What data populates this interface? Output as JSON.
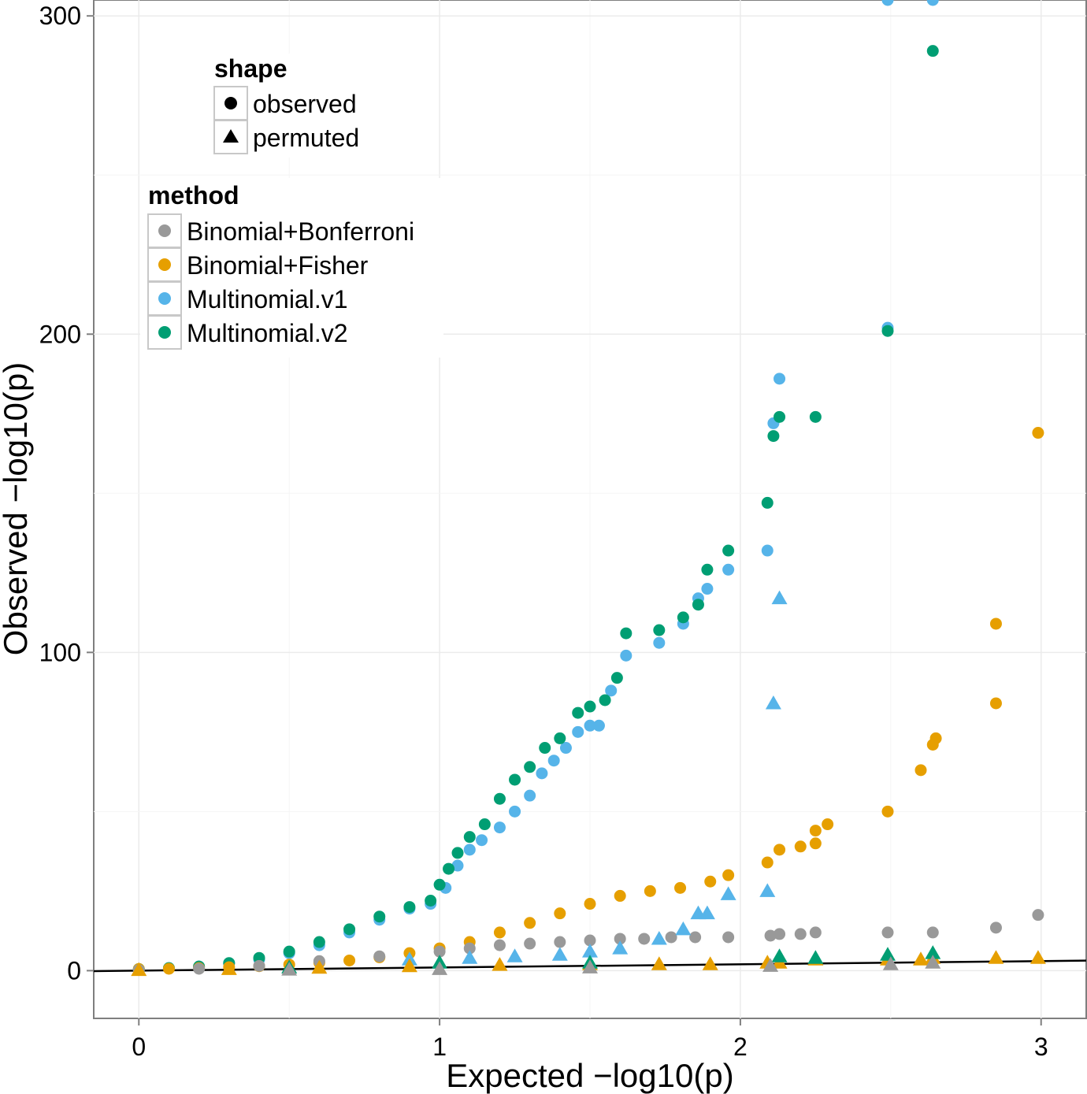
{
  "chart_data": {
    "type": "scatter",
    "title": "",
    "xlabel": "Expected −log10(p)",
    "ylabel": "Observed −log10(p)",
    "xlim": [
      -0.15,
      3.15
    ],
    "ylim": [
      -15,
      305
    ],
    "x_ticks": [
      0,
      1,
      2,
      3
    ],
    "y_ticks": [
      0,
      100,
      200,
      300
    ],
    "x_tick_labels": [
      "0",
      "1",
      "2",
      "3"
    ],
    "y_tick_labels": [
      "0",
      "100",
      "200",
      "300"
    ],
    "grid": true,
    "reference_line": {
      "slope": 1,
      "intercept": 0
    },
    "legends": {
      "shape": {
        "title": "shape",
        "items": [
          {
            "label": "observed",
            "shape": "circle"
          },
          {
            "label": "permuted",
            "shape": "triangle"
          }
        ]
      },
      "method": {
        "title": "method",
        "items": [
          {
            "label": "Binomial+Bonferroni",
            "color": "#999999"
          },
          {
            "label": "Binomial+Fisher",
            "color": "#E69F00"
          },
          {
            "label": "Multinomial.v1",
            "color": "#56B4E9"
          },
          {
            "label": "Multinomial.v2",
            "color": "#009E73"
          }
        ]
      }
    },
    "series": [
      {
        "name": "Multinomial.v1",
        "shape": "circle",
        "color": "#56B4E9",
        "points": [
          [
            0,
            0.5
          ],
          [
            0.1,
            0.8
          ],
          [
            0.2,
            1.3
          ],
          [
            0.3,
            2.3
          ],
          [
            0.4,
            3.5
          ],
          [
            0.5,
            5.5
          ],
          [
            0.6,
            8
          ],
          [
            0.7,
            12
          ],
          [
            0.8,
            16
          ],
          [
            0.9,
            19.5
          ],
          [
            0.97,
            21
          ],
          [
            1.02,
            26
          ],
          [
            1.06,
            33
          ],
          [
            1.1,
            38
          ],
          [
            1.14,
            41
          ],
          [
            1.2,
            45
          ],
          [
            1.25,
            50
          ],
          [
            1.3,
            55
          ],
          [
            1.34,
            62
          ],
          [
            1.38,
            66
          ],
          [
            1.42,
            70
          ],
          [
            1.46,
            75
          ],
          [
            1.5,
            77
          ],
          [
            1.53,
            77
          ],
          [
            1.57,
            88
          ],
          [
            1.62,
            99
          ],
          [
            1.73,
            103
          ],
          [
            1.81,
            109
          ],
          [
            1.86,
            117
          ],
          [
            1.89,
            120
          ],
          [
            1.96,
            126
          ],
          [
            2.09,
            132
          ],
          [
            2.11,
            172
          ],
          [
            2.13,
            186
          ],
          [
            2.49,
            202
          ],
          [
            2.49,
            305
          ],
          [
            2.64,
            305
          ]
        ]
      },
      {
        "name": "Multinomial.v2",
        "shape": "circle",
        "color": "#009E73",
        "points": [
          [
            0,
            0.5
          ],
          [
            0.1,
            0.8
          ],
          [
            0.2,
            1.3
          ],
          [
            0.3,
            2.4
          ],
          [
            0.4,
            4
          ],
          [
            0.5,
            6
          ],
          [
            0.6,
            9
          ],
          [
            0.7,
            13
          ],
          [
            0.8,
            17
          ],
          [
            0.9,
            20
          ],
          [
            0.97,
            22
          ],
          [
            1.0,
            27
          ],
          [
            1.03,
            32
          ],
          [
            1.06,
            37
          ],
          [
            1.1,
            42
          ],
          [
            1.15,
            46
          ],
          [
            1.2,
            54
          ],
          [
            1.25,
            60
          ],
          [
            1.3,
            64
          ],
          [
            1.35,
            70
          ],
          [
            1.4,
            73
          ],
          [
            1.46,
            81
          ],
          [
            1.5,
            83
          ],
          [
            1.55,
            85
          ],
          [
            1.59,
            92
          ],
          [
            1.62,
            106
          ],
          [
            1.73,
            107
          ],
          [
            1.81,
            111
          ],
          [
            1.86,
            115
          ],
          [
            1.89,
            126
          ],
          [
            1.96,
            132
          ],
          [
            2.09,
            147
          ],
          [
            2.11,
            168
          ],
          [
            2.13,
            174
          ],
          [
            2.25,
            174
          ],
          [
            2.49,
            201
          ],
          [
            2.64,
            289
          ]
        ]
      },
      {
        "name": "Binomial+Fisher",
        "shape": "circle",
        "color": "#E69F00",
        "points": [
          [
            0,
            0.5
          ],
          [
            0.1,
            0.6
          ],
          [
            0.2,
            0.8
          ],
          [
            0.3,
            1.1
          ],
          [
            0.4,
            1.4
          ],
          [
            0.5,
            1.9
          ],
          [
            0.6,
            2.5
          ],
          [
            0.7,
            3.2
          ],
          [
            0.8,
            4.2
          ],
          [
            0.9,
            5.5
          ],
          [
            1.0,
            7
          ],
          [
            1.1,
            9
          ],
          [
            1.2,
            12
          ],
          [
            1.3,
            15
          ],
          [
            1.4,
            18
          ],
          [
            1.5,
            21
          ],
          [
            1.6,
            23.5
          ],
          [
            1.7,
            25
          ],
          [
            1.8,
            26
          ],
          [
            1.9,
            28
          ],
          [
            1.96,
            30
          ],
          [
            2.09,
            34
          ],
          [
            2.13,
            38
          ],
          [
            2.2,
            39
          ],
          [
            2.25,
            40
          ],
          [
            2.25,
            44
          ],
          [
            2.29,
            46
          ],
          [
            2.49,
            50
          ],
          [
            2.6,
            63
          ],
          [
            2.64,
            71
          ],
          [
            2.65,
            73
          ],
          [
            2.85,
            84
          ],
          [
            2.85,
            109
          ],
          [
            2.99,
            169
          ]
        ]
      },
      {
        "name": "Binomial+Bonferroni",
        "shape": "circle",
        "color": "#999999",
        "points": [
          [
            0,
            0.2
          ],
          [
            0.2,
            0.6
          ],
          [
            0.4,
            1.5
          ],
          [
            0.6,
            3
          ],
          [
            0.8,
            4.5
          ],
          [
            1.0,
            6
          ],
          [
            1.1,
            7
          ],
          [
            1.2,
            8
          ],
          [
            1.3,
            8.5
          ],
          [
            1.4,
            9
          ],
          [
            1.5,
            9.5
          ],
          [
            1.6,
            10
          ],
          [
            1.68,
            10
          ],
          [
            1.77,
            10.5
          ],
          [
            1.85,
            10.5
          ],
          [
            1.96,
            10.5
          ],
          [
            2.1,
            11
          ],
          [
            2.13,
            11.5
          ],
          [
            2.2,
            11.5
          ],
          [
            2.25,
            12
          ],
          [
            2.49,
            12
          ],
          [
            2.64,
            12
          ],
          [
            2.85,
            13.5
          ],
          [
            2.99,
            17.5
          ]
        ]
      },
      {
        "name": "Multinomial.v1",
        "shape": "triangle",
        "color": "#56B4E9",
        "points": [
          [
            0.9,
            3.5
          ],
          [
            1.1,
            4
          ],
          [
            1.25,
            4.5
          ],
          [
            1.4,
            5
          ],
          [
            1.5,
            6
          ],
          [
            1.6,
            7
          ],
          [
            1.73,
            10
          ],
          [
            1.81,
            13
          ],
          [
            1.86,
            18
          ],
          [
            1.89,
            18
          ],
          [
            1.96,
            24
          ],
          [
            2.09,
            25
          ],
          [
            2.11,
            84
          ],
          [
            2.13,
            117
          ]
        ]
      },
      {
        "name": "Binomial+Fisher",
        "shape": "triangle",
        "color": "#E69F00",
        "points": [
          [
            0,
            0.2
          ],
          [
            0.3,
            0.5
          ],
          [
            0.6,
            0.9
          ],
          [
            0.9,
            1.4
          ],
          [
            1.2,
            1.8
          ],
          [
            1.5,
            2
          ],
          [
            1.73,
            2
          ],
          [
            1.9,
            2
          ],
          [
            2.09,
            2.5
          ],
          [
            2.13,
            2.5
          ],
          [
            2.25,
            3.5
          ],
          [
            2.49,
            3.5
          ],
          [
            2.6,
            3.5
          ],
          [
            2.64,
            4
          ],
          [
            2.85,
            4
          ],
          [
            2.99,
            4
          ]
        ]
      },
      {
        "name": "Multinomial.v2",
        "shape": "triangle",
        "color": "#009E73",
        "points": [
          [
            0.5,
            1
          ],
          [
            1.0,
            2.5
          ],
          [
            1.5,
            2.5
          ],
          [
            2.13,
            4.5
          ],
          [
            2.25,
            4
          ],
          [
            2.49,
            5
          ],
          [
            2.64,
            5.5
          ]
        ]
      },
      {
        "name": "Binomial+Bonferroni",
        "shape": "triangle",
        "color": "#999999",
        "points": [
          [
            0.5,
            0.3
          ],
          [
            1.0,
            0.5
          ],
          [
            1.5,
            1
          ],
          [
            2.1,
            1.5
          ],
          [
            2.5,
            2
          ],
          [
            2.64,
            2.5
          ]
        ]
      }
    ]
  }
}
